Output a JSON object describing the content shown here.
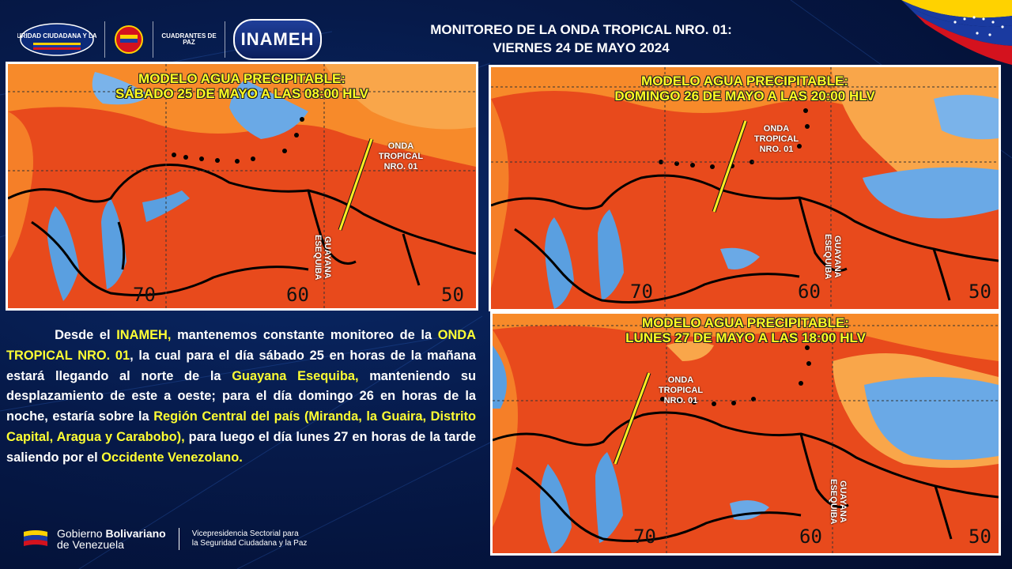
{
  "header": {
    "title_line1": "MONITOREO DE LA ONDA TROPICAL NRO. 01:",
    "title_line2": "VIERNES 24 DE MAYO 2024",
    "logos": {
      "seguridad": "SEGURIDAD CIUDADANA Y LA PAZ",
      "cuadrantes": "CUADRANTES DE PAZ",
      "inameh": "INAMEH"
    }
  },
  "panels": [
    {
      "title_line1": "MODELO AGUA PRECIPITABLE:",
      "title_line2": "SÁBADO 25 DE MAYO A LAS 08:00 HLV",
      "onda_label": [
        "ONDA",
        "TROPICAL",
        "NRO. 01"
      ],
      "guayana_label": [
        "GUAYANA",
        "ESEQUIBA"
      ],
      "lon_labels": [
        "70",
        "60",
        "50"
      ]
    },
    {
      "title_line1": "MODELO AGUA PRECIPITABLE:",
      "title_line2": "DOMINGO 26 DE MAYO A LAS 20:00 HLV",
      "onda_label": [
        "ONDA",
        "TROPICAL",
        "NRO. 01"
      ],
      "guayana_label": [
        "GUAYANA",
        "ESEQUIBA"
      ],
      "lon_labels": [
        "70",
        "60",
        "50"
      ]
    },
    {
      "title_line1": "MODELO AGUA PRECIPITABLE:",
      "title_line2": "LUNES 27 DE MAYO A LAS 18:00 HLV",
      "onda_label": [
        "ONDA",
        "TROPICAL",
        "NRO. 01"
      ],
      "guayana_label": [
        "GUAYANA",
        "ESEQUIBA"
      ],
      "lon_labels": [
        "70",
        "60",
        "50"
      ]
    }
  ],
  "paragraph": {
    "t1": "Desde el ",
    "h1": "INAMEH,",
    "t2": " mantenemos constante monitoreo de la ",
    "h2": "ONDA TROPICAL NRO. 01",
    "t3": ", la cual para el día sábado 25 en horas de la mañana estará llegando al norte de la ",
    "h3": "Guayana Esequiba,",
    "t4": " manteniendo su desplazamiento de este a oeste; para el día domingo 26 en horas de la noche, estaría sobre la ",
    "h4": "Región Central del país (Miranda, la Guaira, Distrito Capital, Aragua y Carabobo),",
    "t5": " para luego el día lunes 27 en horas de la tarde saliendo por el ",
    "h5": "Occidente Venezolano."
  },
  "footer": {
    "gov_prefix": "Gobierno ",
    "gov_bold": "Bolivariano",
    "gov_line2": "de Venezuela",
    "vice_line1": "Vicepresidencia Sectorial para",
    "vice_line2": "la Seguridad Ciudadana y la Paz"
  },
  "colors": {
    "highlight": "#ffff33",
    "panel_title": "#ffff22",
    "wave_line": "#ffee22",
    "map_red": "#e84a1c",
    "map_orange": "#f78a2a",
    "map_blue": "#5a9fe0"
  }
}
